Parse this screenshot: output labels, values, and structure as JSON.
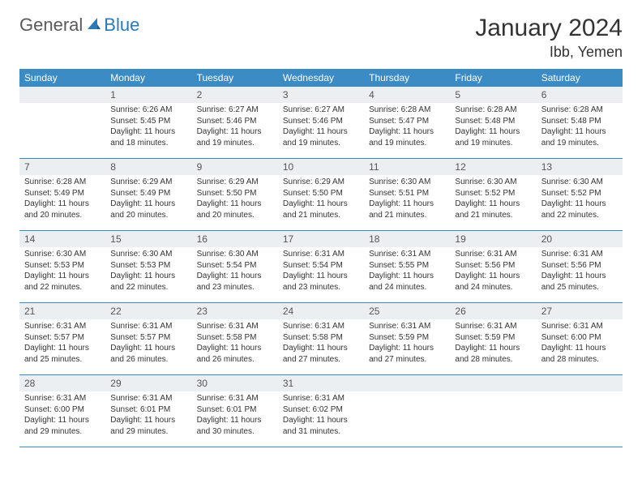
{
  "logo": {
    "general": "General",
    "blue": "Blue"
  },
  "title": "January 2024",
  "location": "Ibb, Yemen",
  "colors": {
    "header_bg": "#3b8bc4",
    "header_text": "#ffffff",
    "daynum_bg": "#eceff1",
    "row_border": "#3b8bc4",
    "logo_gray": "#5a5a5a",
    "logo_blue": "#2a7ab8"
  },
  "weekdays": [
    "Sunday",
    "Monday",
    "Tuesday",
    "Wednesday",
    "Thursday",
    "Friday",
    "Saturday"
  ],
  "weeks": [
    [
      {
        "n": "",
        "sunrise": "",
        "sunset": "",
        "daylight": ""
      },
      {
        "n": "1",
        "sunrise": "Sunrise: 6:26 AM",
        "sunset": "Sunset: 5:45 PM",
        "daylight": "Daylight: 11 hours and 18 minutes."
      },
      {
        "n": "2",
        "sunrise": "Sunrise: 6:27 AM",
        "sunset": "Sunset: 5:46 PM",
        "daylight": "Daylight: 11 hours and 19 minutes."
      },
      {
        "n": "3",
        "sunrise": "Sunrise: 6:27 AM",
        "sunset": "Sunset: 5:46 PM",
        "daylight": "Daylight: 11 hours and 19 minutes."
      },
      {
        "n": "4",
        "sunrise": "Sunrise: 6:28 AM",
        "sunset": "Sunset: 5:47 PM",
        "daylight": "Daylight: 11 hours and 19 minutes."
      },
      {
        "n": "5",
        "sunrise": "Sunrise: 6:28 AM",
        "sunset": "Sunset: 5:48 PM",
        "daylight": "Daylight: 11 hours and 19 minutes."
      },
      {
        "n": "6",
        "sunrise": "Sunrise: 6:28 AM",
        "sunset": "Sunset: 5:48 PM",
        "daylight": "Daylight: 11 hours and 19 minutes."
      }
    ],
    [
      {
        "n": "7",
        "sunrise": "Sunrise: 6:28 AM",
        "sunset": "Sunset: 5:49 PM",
        "daylight": "Daylight: 11 hours and 20 minutes."
      },
      {
        "n": "8",
        "sunrise": "Sunrise: 6:29 AM",
        "sunset": "Sunset: 5:49 PM",
        "daylight": "Daylight: 11 hours and 20 minutes."
      },
      {
        "n": "9",
        "sunrise": "Sunrise: 6:29 AM",
        "sunset": "Sunset: 5:50 PM",
        "daylight": "Daylight: 11 hours and 20 minutes."
      },
      {
        "n": "10",
        "sunrise": "Sunrise: 6:29 AM",
        "sunset": "Sunset: 5:50 PM",
        "daylight": "Daylight: 11 hours and 21 minutes."
      },
      {
        "n": "11",
        "sunrise": "Sunrise: 6:30 AM",
        "sunset": "Sunset: 5:51 PM",
        "daylight": "Daylight: 11 hours and 21 minutes."
      },
      {
        "n": "12",
        "sunrise": "Sunrise: 6:30 AM",
        "sunset": "Sunset: 5:52 PM",
        "daylight": "Daylight: 11 hours and 21 minutes."
      },
      {
        "n": "13",
        "sunrise": "Sunrise: 6:30 AM",
        "sunset": "Sunset: 5:52 PM",
        "daylight": "Daylight: 11 hours and 22 minutes."
      }
    ],
    [
      {
        "n": "14",
        "sunrise": "Sunrise: 6:30 AM",
        "sunset": "Sunset: 5:53 PM",
        "daylight": "Daylight: 11 hours and 22 minutes."
      },
      {
        "n": "15",
        "sunrise": "Sunrise: 6:30 AM",
        "sunset": "Sunset: 5:53 PM",
        "daylight": "Daylight: 11 hours and 22 minutes."
      },
      {
        "n": "16",
        "sunrise": "Sunrise: 6:30 AM",
        "sunset": "Sunset: 5:54 PM",
        "daylight": "Daylight: 11 hours and 23 minutes."
      },
      {
        "n": "17",
        "sunrise": "Sunrise: 6:31 AM",
        "sunset": "Sunset: 5:54 PM",
        "daylight": "Daylight: 11 hours and 23 minutes."
      },
      {
        "n": "18",
        "sunrise": "Sunrise: 6:31 AM",
        "sunset": "Sunset: 5:55 PM",
        "daylight": "Daylight: 11 hours and 24 minutes."
      },
      {
        "n": "19",
        "sunrise": "Sunrise: 6:31 AM",
        "sunset": "Sunset: 5:56 PM",
        "daylight": "Daylight: 11 hours and 24 minutes."
      },
      {
        "n": "20",
        "sunrise": "Sunrise: 6:31 AM",
        "sunset": "Sunset: 5:56 PM",
        "daylight": "Daylight: 11 hours and 25 minutes."
      }
    ],
    [
      {
        "n": "21",
        "sunrise": "Sunrise: 6:31 AM",
        "sunset": "Sunset: 5:57 PM",
        "daylight": "Daylight: 11 hours and 25 minutes."
      },
      {
        "n": "22",
        "sunrise": "Sunrise: 6:31 AM",
        "sunset": "Sunset: 5:57 PM",
        "daylight": "Daylight: 11 hours and 26 minutes."
      },
      {
        "n": "23",
        "sunrise": "Sunrise: 6:31 AM",
        "sunset": "Sunset: 5:58 PM",
        "daylight": "Daylight: 11 hours and 26 minutes."
      },
      {
        "n": "24",
        "sunrise": "Sunrise: 6:31 AM",
        "sunset": "Sunset: 5:58 PM",
        "daylight": "Daylight: 11 hours and 27 minutes."
      },
      {
        "n": "25",
        "sunrise": "Sunrise: 6:31 AM",
        "sunset": "Sunset: 5:59 PM",
        "daylight": "Daylight: 11 hours and 27 minutes."
      },
      {
        "n": "26",
        "sunrise": "Sunrise: 6:31 AM",
        "sunset": "Sunset: 5:59 PM",
        "daylight": "Daylight: 11 hours and 28 minutes."
      },
      {
        "n": "27",
        "sunrise": "Sunrise: 6:31 AM",
        "sunset": "Sunset: 6:00 PM",
        "daylight": "Daylight: 11 hours and 28 minutes."
      }
    ],
    [
      {
        "n": "28",
        "sunrise": "Sunrise: 6:31 AM",
        "sunset": "Sunset: 6:00 PM",
        "daylight": "Daylight: 11 hours and 29 minutes."
      },
      {
        "n": "29",
        "sunrise": "Sunrise: 6:31 AM",
        "sunset": "Sunset: 6:01 PM",
        "daylight": "Daylight: 11 hours and 29 minutes."
      },
      {
        "n": "30",
        "sunrise": "Sunrise: 6:31 AM",
        "sunset": "Sunset: 6:01 PM",
        "daylight": "Daylight: 11 hours and 30 minutes."
      },
      {
        "n": "31",
        "sunrise": "Sunrise: 6:31 AM",
        "sunset": "Sunset: 6:02 PM",
        "daylight": "Daylight: 11 hours and 31 minutes."
      },
      {
        "n": "",
        "sunrise": "",
        "sunset": "",
        "daylight": ""
      },
      {
        "n": "",
        "sunrise": "",
        "sunset": "",
        "daylight": ""
      },
      {
        "n": "",
        "sunrise": "",
        "sunset": "",
        "daylight": ""
      }
    ]
  ]
}
